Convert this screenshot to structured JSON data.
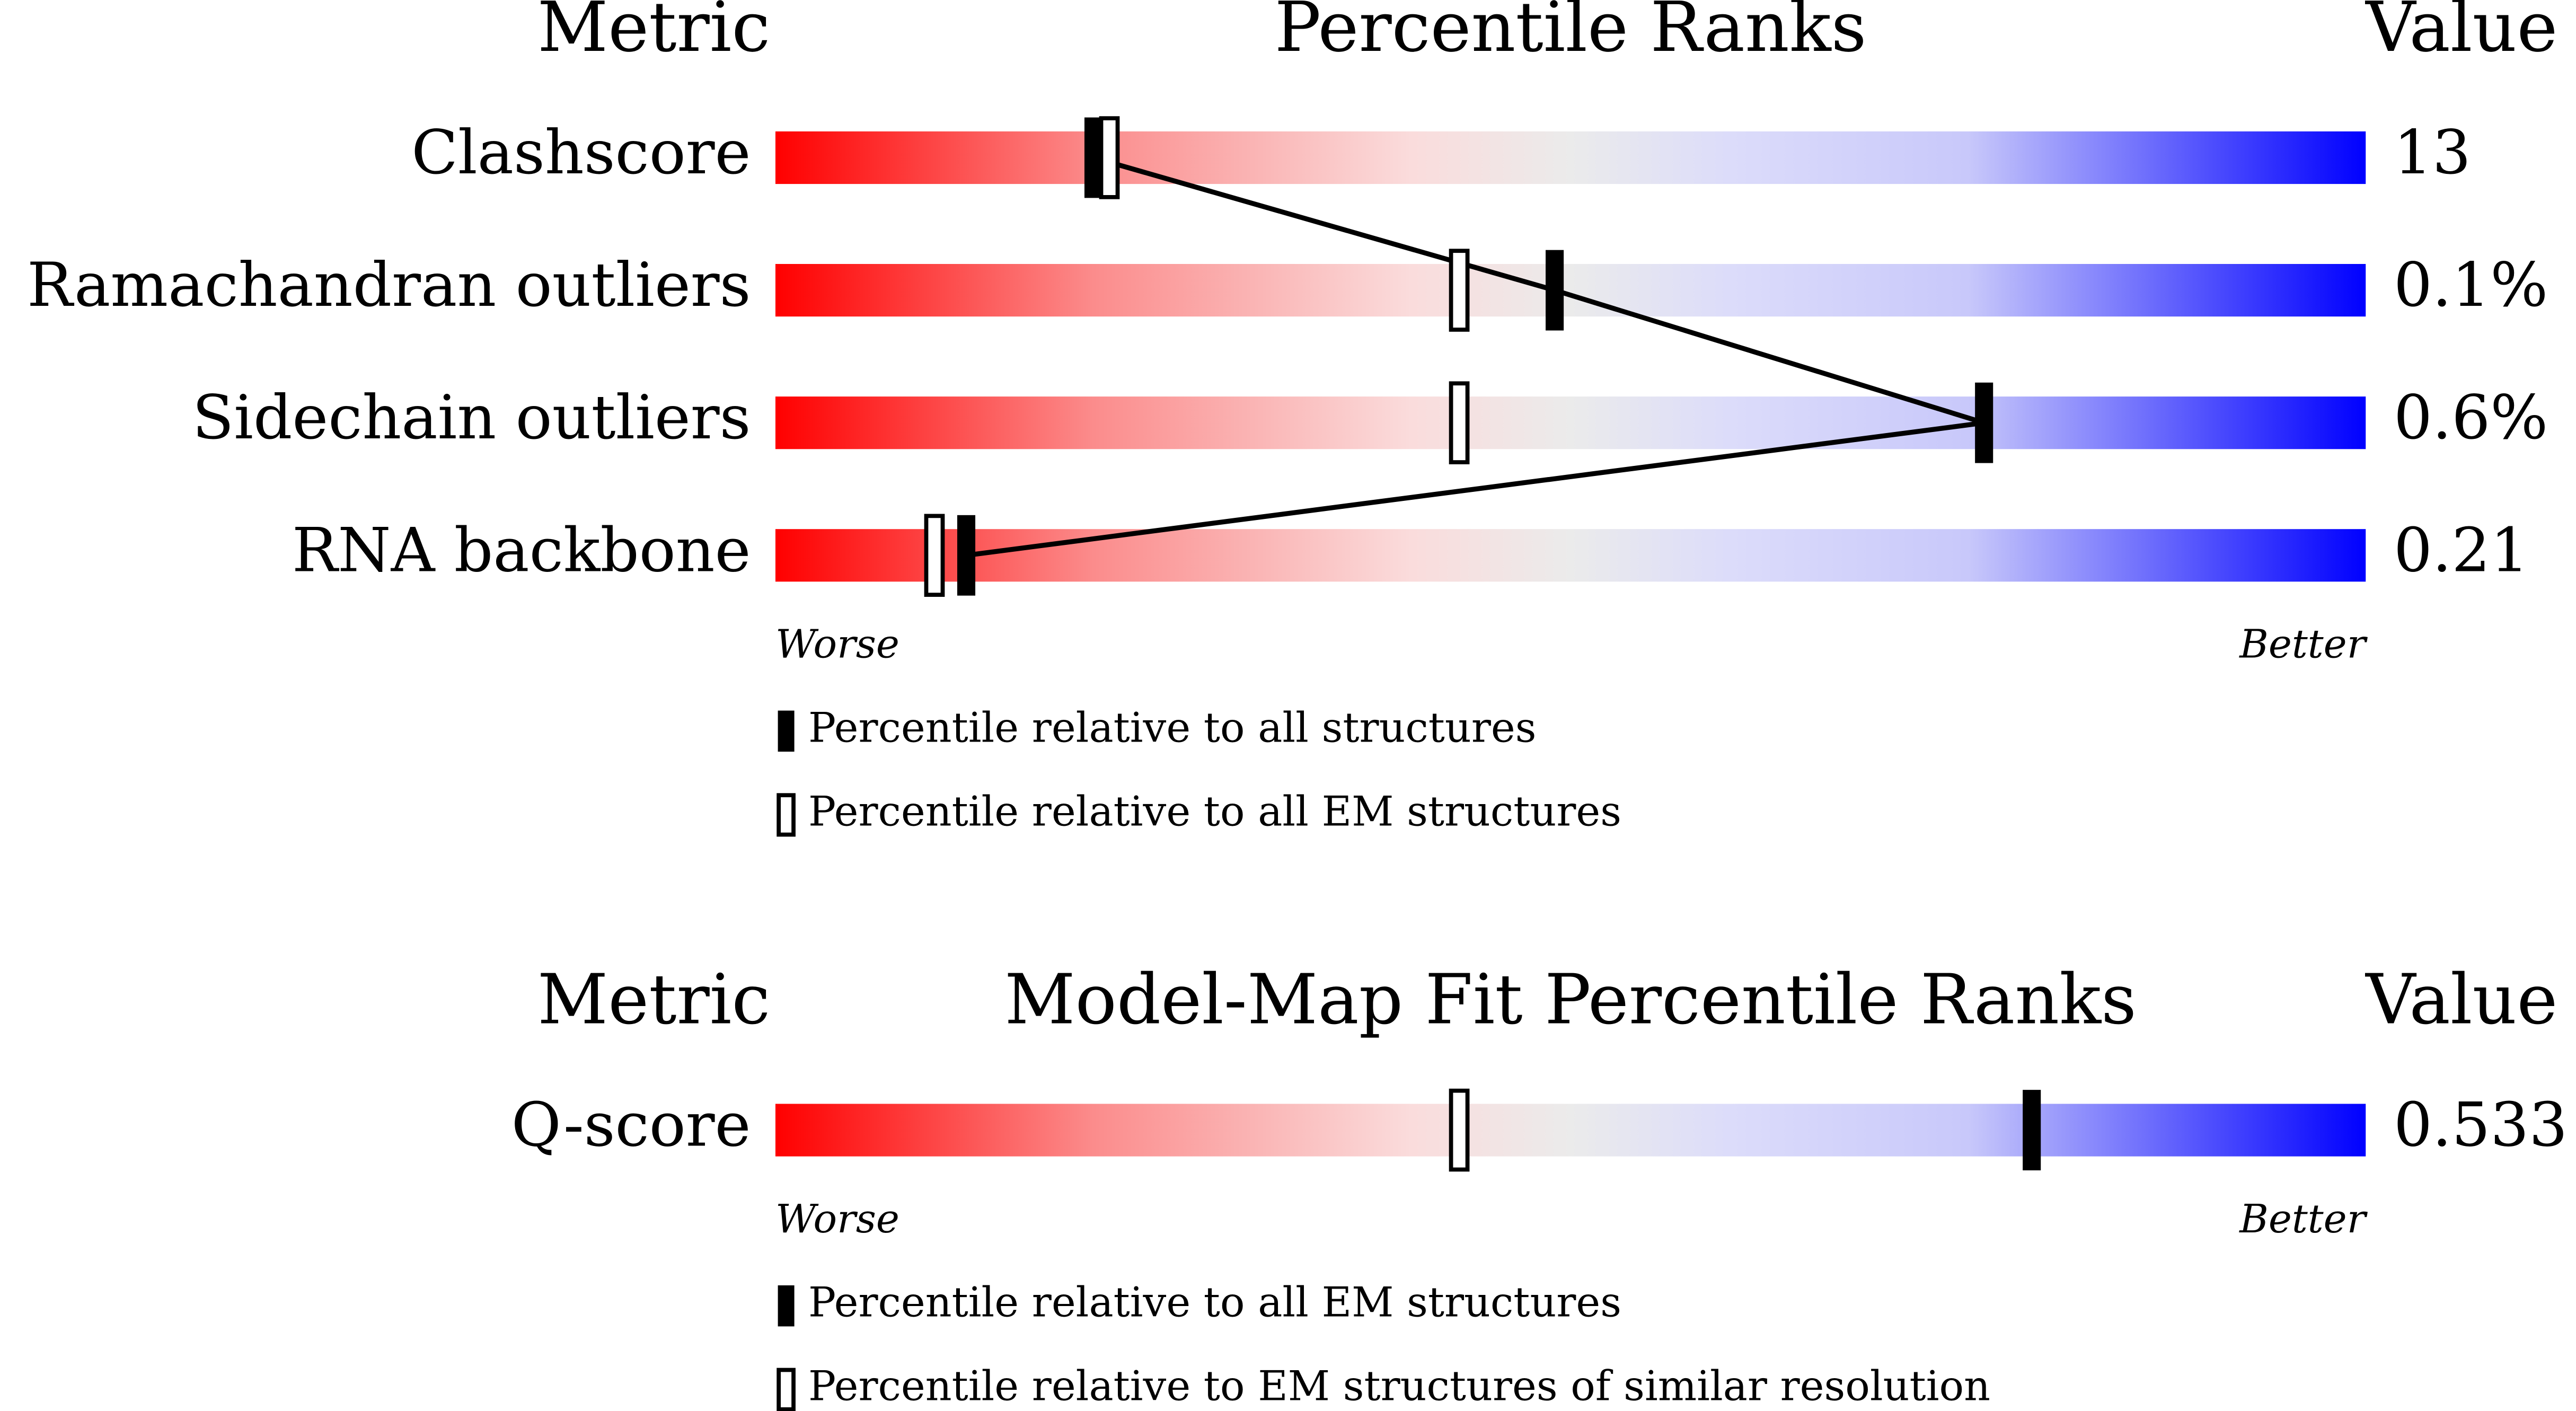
{
  "chart_data": [
    {
      "type": "percentile",
      "header_metric": "Metric",
      "title": "Percentile Ranks",
      "header_value": "Value",
      "categories": [
        "Clashscore",
        "Ramachandran outliers",
        "Sidechain outliers",
        "RNA backbone"
      ],
      "metric_values": [
        "13",
        "0.1%",
        "0.6%",
        "0.21"
      ],
      "xlim": [
        0,
        100
      ],
      "low_label": "Worse",
      "high_label": "Better",
      "connect_series": 0,
      "series": [
        {
          "name": "Percentile relative to all structures",
          "color": "#000000",
          "filled": true,
          "values": [
            20,
            49,
            76,
            12
          ]
        },
        {
          "name": "Percentile relative to all EM structures",
          "color": "#000000",
          "filled": false,
          "values": [
            21,
            43,
            43,
            10
          ]
        }
      ]
    },
    {
      "type": "percentile",
      "header_metric": "Metric",
      "title": "Model-Map Fit Percentile Ranks",
      "header_value": "Value",
      "categories": [
        "Q-score"
      ],
      "metric_values": [
        "0.533"
      ],
      "xlim": [
        0,
        100
      ],
      "low_label": "Worse",
      "high_label": "Better",
      "connect_series": 0,
      "series": [
        {
          "name": "Percentile relative to all EM structures",
          "color": "#000000",
          "filled": true,
          "values": [
            79
          ]
        },
        {
          "name": "Percentile relative to EM structures of similar resolution",
          "color": "#000000",
          "filled": false,
          "values": [
            43
          ]
        }
      ]
    }
  ]
}
